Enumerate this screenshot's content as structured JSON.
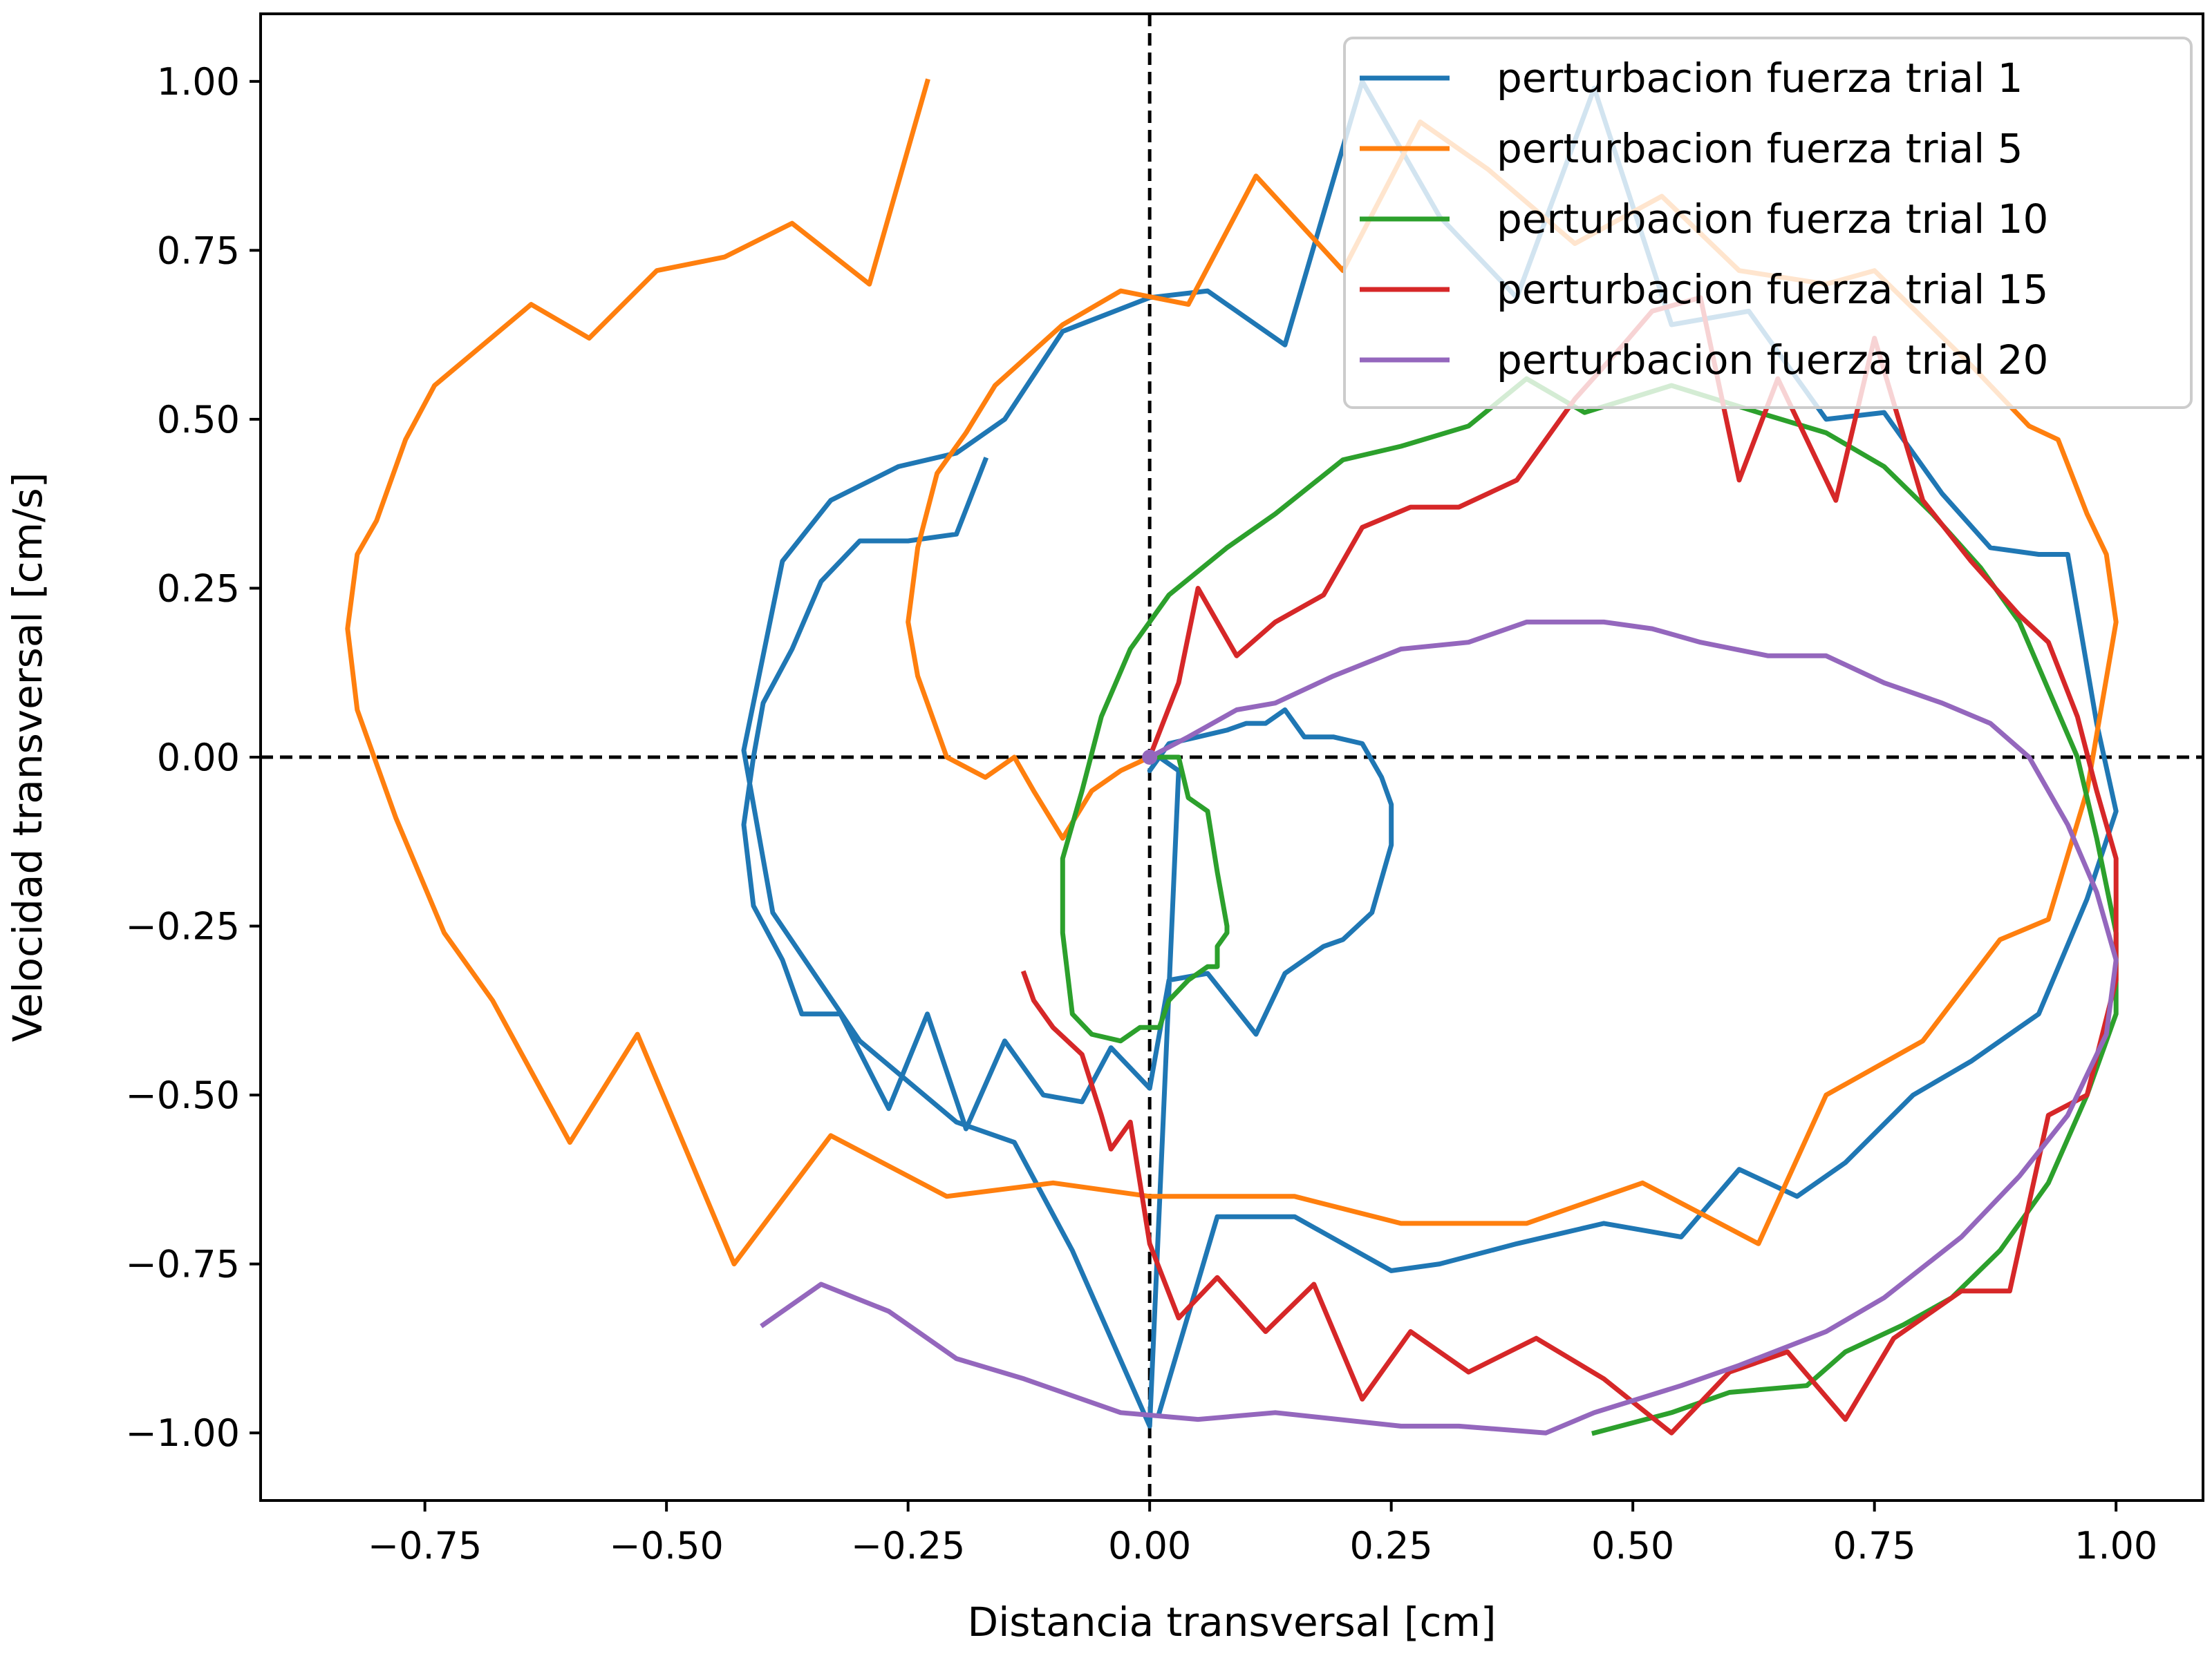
{
  "chart_data": {
    "type": "line",
    "title": "",
    "xlabel": "Distancia transversal [cm]",
    "ylabel": "Velocidad transversal [cm/s]",
    "xlim": [
      -0.92,
      1.09
    ],
    "ylim": [
      -1.1,
      1.1
    ],
    "xticks": [
      -0.75,
      -0.5,
      -0.25,
      0.0,
      0.25,
      0.5,
      0.75,
      1.0
    ],
    "yticks": [
      -1.0,
      -0.75,
      -0.5,
      -0.25,
      0.0,
      0.25,
      0.5,
      0.75,
      1.0
    ],
    "xtick_labels": [
      "−0.75",
      "−0.50",
      "−0.25",
      "0.00",
      "0.25",
      "0.50",
      "0.75",
      "1.00"
    ],
    "ytick_labels": [
      "−1.00",
      "−0.75",
      "−0.50",
      "−0.25",
      "0.00",
      "0.25",
      "0.50",
      "0.75",
      "1.00"
    ],
    "reference_lines": {
      "x": 0,
      "y": 0,
      "style": "dashed",
      "color": "#000000"
    },
    "grid": false,
    "legend_position": "top-right",
    "series": [
      {
        "name": "perturbacion fuerza trial 1",
        "color": "#1f77b4",
        "points": [
          [
            -0.17,
            0.44
          ],
          [
            -0.2,
            0.33
          ],
          [
            -0.25,
            0.32
          ],
          [
            -0.3,
            0.32
          ],
          [
            -0.34,
            0.26
          ],
          [
            -0.37,
            0.16
          ],
          [
            -0.4,
            0.08
          ],
          [
            -0.41,
            0.0
          ],
          [
            -0.42,
            -0.1
          ],
          [
            -0.41,
            -0.22
          ],
          [
            -0.38,
            -0.3
          ],
          [
            -0.36,
            -0.38
          ],
          [
            -0.32,
            -0.38
          ],
          [
            -0.27,
            -0.52
          ],
          [
            -0.23,
            -0.38
          ],
          [
            -0.19,
            -0.55
          ],
          [
            -0.15,
            -0.42
          ],
          [
            -0.11,
            -0.5
          ],
          [
            -0.07,
            -0.51
          ],
          [
            -0.04,
            -0.43
          ],
          [
            0.0,
            -0.49
          ],
          [
            0.02,
            -0.33
          ],
          [
            0.06,
            -0.32
          ],
          [
            0.11,
            -0.41
          ],
          [
            0.14,
            -0.32
          ],
          [
            0.18,
            -0.28
          ],
          [
            0.2,
            -0.27
          ],
          [
            0.23,
            -0.23
          ],
          [
            0.25,
            -0.13
          ],
          [
            0.25,
            -0.07
          ],
          [
            0.24,
            -0.03
          ],
          [
            0.22,
            0.02
          ],
          [
            0.19,
            0.03
          ],
          [
            0.16,
            0.03
          ],
          [
            0.14,
            0.07
          ],
          [
            0.12,
            0.05
          ],
          [
            0.1,
            0.05
          ],
          [
            0.08,
            0.04
          ],
          [
            0.05,
            0.03
          ],
          [
            0.02,
            0.02
          ],
          [
            0.0,
            -0.02
          ],
          [
            0.01,
            0.0
          ],
          [
            0.03,
            -0.02
          ],
          [
            0.0,
            -0.99
          ],
          [
            -0.08,
            -0.73
          ],
          [
            -0.14,
            -0.57
          ],
          [
            -0.2,
            -0.54
          ],
          [
            -0.3,
            -0.42
          ],
          [
            -0.39,
            -0.23
          ],
          [
            -0.42,
            0.01
          ],
          [
            -0.38,
            0.29
          ],
          [
            -0.33,
            0.38
          ],
          [
            -0.26,
            0.43
          ],
          [
            -0.2,
            0.45
          ],
          [
            -0.15,
            0.5
          ],
          [
            -0.09,
            0.63
          ],
          [
            0.0,
            0.68
          ],
          [
            0.06,
            0.69
          ],
          [
            0.14,
            0.61
          ],
          [
            0.22,
            1.0
          ],
          [
            0.3,
            0.8
          ],
          [
            0.38,
            0.68
          ],
          [
            0.46,
            0.99
          ],
          [
            0.54,
            0.64
          ],
          [
            0.62,
            0.66
          ],
          [
            0.7,
            0.5
          ],
          [
            0.76,
            0.51
          ],
          [
            0.82,
            0.39
          ],
          [
            0.87,
            0.31
          ],
          [
            0.92,
            0.3
          ],
          [
            0.95,
            0.3
          ],
          [
            0.98,
            0.05
          ],
          [
            1.0,
            -0.08
          ],
          [
            0.97,
            -0.21
          ],
          [
            0.92,
            -0.38
          ],
          [
            0.85,
            -0.45
          ],
          [
            0.79,
            -0.5
          ],
          [
            0.72,
            -0.6
          ],
          [
            0.67,
            -0.65
          ],
          [
            0.61,
            -0.61
          ],
          [
            0.55,
            -0.71
          ],
          [
            0.47,
            -0.69
          ],
          [
            0.38,
            -0.72
          ],
          [
            0.3,
            -0.75
          ],
          [
            0.25,
            -0.76
          ],
          [
            0.15,
            -0.68
          ],
          [
            0.07,
            -0.68
          ],
          [
            0.01,
            -0.97
          ]
        ]
      },
      {
        "name": "perturbacion fuerza trial 5",
        "color": "#ff7f0e",
        "points": [
          [
            -0.23,
            1.0
          ],
          [
            -0.29,
            0.7
          ],
          [
            -0.37,
            0.79
          ],
          [
            -0.44,
            0.74
          ],
          [
            -0.51,
            0.72
          ],
          [
            -0.58,
            0.62
          ],
          [
            -0.64,
            0.67
          ],
          [
            -0.74,
            0.55
          ],
          [
            -0.77,
            0.47
          ],
          [
            -0.8,
            0.35
          ],
          [
            -0.82,
            0.3
          ],
          [
            -0.83,
            0.19
          ],
          [
            -0.82,
            0.07
          ],
          [
            -0.78,
            -0.09
          ],
          [
            -0.73,
            -0.26
          ],
          [
            -0.68,
            -0.36
          ],
          [
            -0.6,
            -0.57
          ],
          [
            -0.53,
            -0.41
          ],
          [
            -0.43,
            -0.75
          ],
          [
            -0.33,
            -0.56
          ],
          [
            -0.21,
            -0.65
          ],
          [
            -0.1,
            -0.63
          ],
          [
            0.0,
            -0.65
          ],
          [
            0.15,
            -0.65
          ],
          [
            0.26,
            -0.69
          ],
          [
            0.39,
            -0.69
          ],
          [
            0.51,
            -0.63
          ],
          [
            0.63,
            -0.72
          ],
          [
            0.7,
            -0.5
          ],
          [
            0.8,
            -0.42
          ],
          [
            0.88,
            -0.27
          ],
          [
            0.93,
            -0.24
          ],
          [
            0.97,
            -0.05
          ],
          [
            1.0,
            0.2
          ],
          [
            0.99,
            0.3
          ],
          [
            0.97,
            0.36
          ],
          [
            0.94,
            0.47
          ],
          [
            0.91,
            0.49
          ],
          [
            0.85,
            0.58
          ],
          [
            0.75,
            0.72
          ],
          [
            0.7,
            0.7
          ],
          [
            0.61,
            0.72
          ],
          [
            0.53,
            0.83
          ],
          [
            0.44,
            0.76
          ],
          [
            0.35,
            0.87
          ],
          [
            0.28,
            0.94
          ],
          [
            0.2,
            0.72
          ],
          [
            0.11,
            0.86
          ],
          [
            0.04,
            0.67
          ],
          [
            -0.03,
            0.69
          ],
          [
            -0.09,
            0.64
          ],
          [
            -0.16,
            0.55
          ],
          [
            -0.19,
            0.48
          ],
          [
            -0.22,
            0.42
          ],
          [
            -0.24,
            0.31
          ],
          [
            -0.25,
            0.2
          ],
          [
            -0.24,
            0.12
          ],
          [
            -0.23,
            0.08
          ],
          [
            -0.21,
            0.0
          ],
          [
            -0.17,
            -0.03
          ],
          [
            -0.14,
            0.0
          ],
          [
            -0.12,
            -0.05
          ],
          [
            -0.09,
            -0.12
          ],
          [
            -0.06,
            -0.05
          ],
          [
            -0.03,
            -0.02
          ],
          [
            0.0,
            0.0
          ]
        ]
      },
      {
        "name": "perturbacion fuerza trial 10",
        "color": "#2ca02c",
        "points": [
          [
            0.0,
            0.0
          ],
          [
            0.03,
            0.0
          ],
          [
            0.04,
            -0.06
          ],
          [
            0.06,
            -0.08
          ],
          [
            0.07,
            -0.17
          ],
          [
            0.08,
            -0.25
          ],
          [
            0.08,
            -0.26
          ],
          [
            0.07,
            -0.28
          ],
          [
            0.07,
            -0.31
          ],
          [
            0.06,
            -0.31
          ],
          [
            0.04,
            -0.33
          ],
          [
            0.02,
            -0.36
          ],
          [
            0.01,
            -0.4
          ],
          [
            -0.01,
            -0.4
          ],
          [
            -0.03,
            -0.42
          ],
          [
            -0.06,
            -0.41
          ],
          [
            -0.08,
            -0.38
          ],
          [
            -0.09,
            -0.26
          ],
          [
            -0.09,
            -0.15
          ],
          [
            -0.07,
            -0.05
          ],
          [
            -0.05,
            0.06
          ],
          [
            -0.02,
            0.16
          ],
          [
            0.02,
            0.24
          ],
          [
            0.08,
            0.31
          ],
          [
            0.13,
            0.36
          ],
          [
            0.2,
            0.44
          ],
          [
            0.26,
            0.46
          ],
          [
            0.33,
            0.49
          ],
          [
            0.39,
            0.56
          ],
          [
            0.45,
            0.51
          ],
          [
            0.54,
            0.55
          ],
          [
            0.63,
            0.51
          ],
          [
            0.7,
            0.48
          ],
          [
            0.76,
            0.43
          ],
          [
            0.81,
            0.36
          ],
          [
            0.86,
            0.28
          ],
          [
            0.9,
            0.2
          ],
          [
            0.93,
            0.1
          ],
          [
            0.96,
            0.0
          ],
          [
            0.98,
            -0.12
          ],
          [
            1.0,
            -0.26
          ],
          [
            1.0,
            -0.38
          ],
          [
            0.97,
            -0.5
          ],
          [
            0.93,
            -0.63
          ],
          [
            0.88,
            -0.73
          ],
          [
            0.83,
            -0.8
          ],
          [
            0.78,
            -0.84
          ],
          [
            0.72,
            -0.88
          ],
          [
            0.68,
            -0.93
          ],
          [
            0.6,
            -0.94
          ],
          [
            0.54,
            -0.97
          ],
          [
            0.46,
            -1.0
          ]
        ]
      },
      {
        "name": "perturbacion fuerza trial 15",
        "color": "#d62728",
        "points": [
          [
            0.0,
            0.0
          ],
          [
            0.03,
            0.11
          ],
          [
            0.05,
            0.25
          ],
          [
            0.09,
            0.15
          ],
          [
            0.13,
            0.2
          ],
          [
            0.18,
            0.24
          ],
          [
            0.22,
            0.34
          ],
          [
            0.27,
            0.37
          ],
          [
            0.32,
            0.37
          ],
          [
            0.38,
            0.41
          ],
          [
            0.44,
            0.53
          ],
          [
            0.49,
            0.61
          ],
          [
            0.52,
            0.66
          ],
          [
            0.57,
            0.68
          ],
          [
            0.61,
            0.41
          ],
          [
            0.65,
            0.56
          ],
          [
            0.71,
            0.38
          ],
          [
            0.75,
            0.62
          ],
          [
            0.8,
            0.38
          ],
          [
            0.85,
            0.29
          ],
          [
            0.9,
            0.21
          ],
          [
            0.93,
            0.17
          ],
          [
            0.96,
            0.06
          ],
          [
            0.98,
            -0.05
          ],
          [
            1.0,
            -0.15
          ],
          [
            1.0,
            -0.33
          ],
          [
            0.97,
            -0.5
          ],
          [
            0.93,
            -0.53
          ],
          [
            0.89,
            -0.79
          ],
          [
            0.84,
            -0.79
          ],
          [
            0.77,
            -0.86
          ],
          [
            0.72,
            -0.98
          ],
          [
            0.66,
            -0.88
          ],
          [
            0.6,
            -0.91
          ],
          [
            0.54,
            -1.0
          ],
          [
            0.47,
            -0.92
          ],
          [
            0.4,
            -0.86
          ],
          [
            0.33,
            -0.91
          ],
          [
            0.27,
            -0.85
          ],
          [
            0.22,
            -0.95
          ],
          [
            0.17,
            -0.78
          ],
          [
            0.12,
            -0.85
          ],
          [
            0.07,
            -0.77
          ],
          [
            0.03,
            -0.83
          ],
          [
            0.0,
            -0.72
          ],
          [
            -0.02,
            -0.54
          ],
          [
            -0.04,
            -0.58
          ],
          [
            -0.05,
            -0.53
          ],
          [
            -0.07,
            -0.44
          ],
          [
            -0.1,
            -0.4
          ],
          [
            -0.12,
            -0.36
          ],
          [
            -0.13,
            -0.32
          ]
        ]
      },
      {
        "name": "perturbacion fuerza trial 20",
        "color": "#9467bd",
        "points": [
          [
            0.0,
            0.0
          ],
          [
            0.04,
            0.03
          ],
          [
            0.09,
            0.07
          ],
          [
            0.13,
            0.08
          ],
          [
            0.19,
            0.12
          ],
          [
            0.26,
            0.16
          ],
          [
            0.33,
            0.17
          ],
          [
            0.39,
            0.2
          ],
          [
            0.47,
            0.2
          ],
          [
            0.52,
            0.19
          ],
          [
            0.57,
            0.17
          ],
          [
            0.64,
            0.15
          ],
          [
            0.7,
            0.15
          ],
          [
            0.76,
            0.11
          ],
          [
            0.82,
            0.08
          ],
          [
            0.87,
            0.05
          ],
          [
            0.91,
            0.0
          ],
          [
            0.95,
            -0.1
          ],
          [
            0.98,
            -0.2
          ],
          [
            1.0,
            -0.3
          ],
          [
            0.99,
            -0.41
          ],
          [
            0.95,
            -0.53
          ],
          [
            0.9,
            -0.62
          ],
          [
            0.84,
            -0.71
          ],
          [
            0.76,
            -0.8
          ],
          [
            0.7,
            -0.85
          ],
          [
            0.61,
            -0.9
          ],
          [
            0.55,
            -0.93
          ],
          [
            0.46,
            -0.97
          ],
          [
            0.41,
            -1.0
          ],
          [
            0.32,
            -0.99
          ],
          [
            0.26,
            -0.99
          ],
          [
            0.13,
            -0.97
          ],
          [
            0.05,
            -0.98
          ],
          [
            -0.03,
            -0.97
          ],
          [
            -0.13,
            -0.92
          ],
          [
            -0.2,
            -0.89
          ],
          [
            -0.27,
            -0.82
          ],
          [
            -0.34,
            -0.78
          ],
          [
            -0.4,
            -0.84
          ]
        ]
      }
    ]
  }
}
